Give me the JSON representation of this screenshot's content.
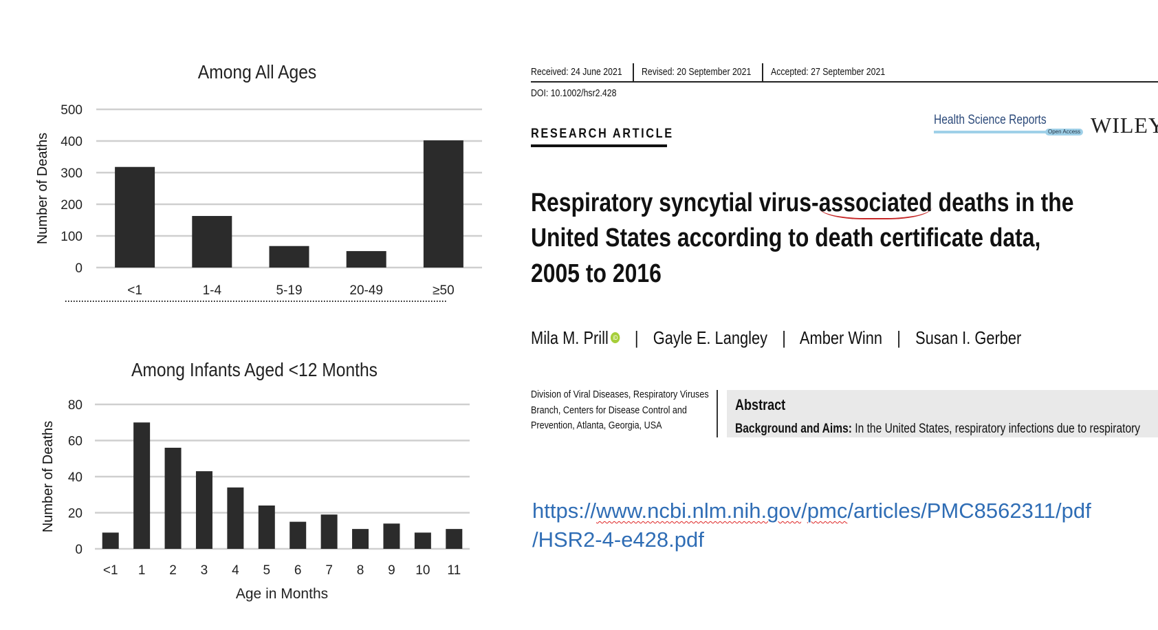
{
  "chart_data": [
    {
      "type": "bar",
      "title": "Among All Ages",
      "xlabel": "",
      "ylabel": "Number of Deaths",
      "categories": [
        "<1",
        "1-4",
        "5-19",
        "20-49",
        "≥50"
      ],
      "values": [
        318,
        163,
        68,
        52,
        402
      ],
      "ylim": [
        0,
        500
      ],
      "yticks": [
        "0",
        "100",
        "200",
        "300",
        "400",
        "500"
      ],
      "grid": true,
      "bar_color": "#2b2b2b"
    },
    {
      "type": "bar",
      "title": "Among Infants Aged <12 Months",
      "xlabel": "Age in Months",
      "ylabel": "Number of Deaths",
      "categories": [
        "<1",
        "1",
        "2",
        "3",
        "4",
        "5",
        "6",
        "7",
        "8",
        "9",
        "10",
        "11"
      ],
      "values": [
        9,
        70,
        56,
        43,
        34,
        24,
        15,
        19,
        11,
        14,
        9,
        11
      ],
      "ylim": [
        0,
        80
      ],
      "yticks": [
        "0",
        "20",
        "40",
        "60",
        "80"
      ],
      "grid": true,
      "bar_color": "#2b2b2b"
    }
  ],
  "article": {
    "received": "Received: 24 June 2021",
    "revised": "Revised: 20 September 2021",
    "accepted": "Accepted: 27 September 2021",
    "doi": "DOI: 10.1002/hsr2.428",
    "section": "RESEARCH ARTICLE",
    "journal": "Health Science Reports",
    "open_access": "Open Access",
    "publisher": "WILEY",
    "title_line1_a": "Respiratory syncytial virus-",
    "title_line1_b": "associated",
    "title_line1_c": " deaths in the",
    "title_line2": "United States according to death certificate data,",
    "title_line3": "2005 to 2016",
    "authors": [
      "Mila M. Prill",
      "Gayle E. Langley",
      "Amber Winn",
      "Susan I. Gerber"
    ],
    "author_separator": "|",
    "orcid_icon": "iD",
    "affiliation": [
      "Division of Viral Diseases, Respiratory Viruses",
      "Branch, Centers for Disease Control and",
      "Prevention, Atlanta, Georgia, USA"
    ],
    "abstract_heading": "Abstract",
    "abstract_label": "Background and Aims:",
    "abstract_text": " In the United States, respiratory infections due to respiratory",
    "accent_color": "#2f6db5"
  },
  "link": {
    "part1": "https://",
    "part2": "www.ncbi.nlm.nih.gov",
    "part3": "/",
    "part4": "pmc",
    "part5": "/articles/PMC8562311/pdf",
    "line2": "/HSR2-4-e428.pdf"
  }
}
